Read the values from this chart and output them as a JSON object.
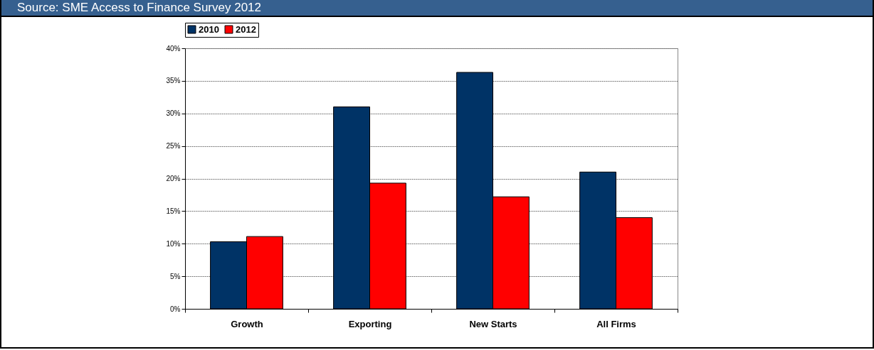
{
  "chart_data": {
    "type": "bar",
    "annotations": [
      "Source: SME Access to Finance Survey 2012"
    ],
    "categories": [
      "Growth",
      "Exporting",
      "New Starts",
      "All Firms"
    ],
    "series": [
      {
        "name": "2010",
        "color": "#003366",
        "values": [
          10.3,
          31.0,
          36.3,
          21.0
        ]
      },
      {
        "name": "2012",
        "color": "#ff0000",
        "values": [
          11.1,
          19.3,
          17.2,
          14.0
        ]
      }
    ],
    "ylim": [
      0,
      40
    ],
    "yticks": [
      {
        "value": 0,
        "label": "0%"
      },
      {
        "value": 5,
        "label": "5%"
      },
      {
        "value": 10,
        "label": "10%"
      },
      {
        "value": 15,
        "label": "15%"
      },
      {
        "value": 20,
        "label": "20%"
      },
      {
        "value": 25,
        "label": "25%"
      },
      {
        "value": 30,
        "label": "30%"
      },
      {
        "value": 35,
        "label": "35%"
      },
      {
        "value": 40,
        "label": "40%"
      }
    ],
    "grid": "y",
    "legend": "top"
  }
}
